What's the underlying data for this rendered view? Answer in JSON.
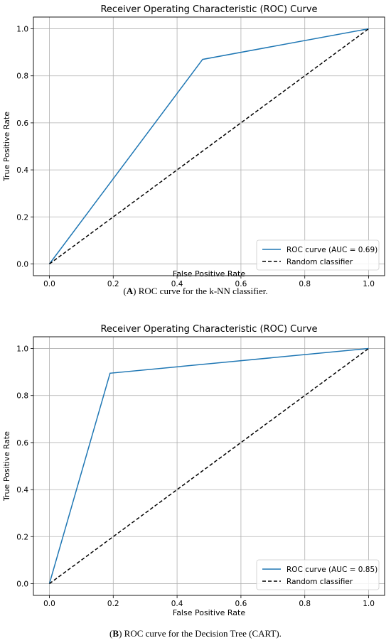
{
  "captions": [
    {
      "letter": "A",
      "text": "ROC curve for the k-NN classifier."
    },
    {
      "letter": "B",
      "text": "ROC curve for the Decision Tree (CART)."
    }
  ],
  "chart_data": [
    {
      "type": "line",
      "title": "Receiver Operating Characteristic (ROC) Curve",
      "xlabel": "False Positive Rate",
      "ylabel": "True Positive Rate",
      "xlim": [
        -0.05,
        1.05
      ],
      "ylim": [
        -0.05,
        1.05
      ],
      "xticks": [
        0.0,
        0.2,
        0.4,
        0.6,
        0.8,
        1.0
      ],
      "yticks": [
        0.0,
        0.2,
        0.4,
        0.6,
        0.8,
        1.0
      ],
      "tick_labels": [
        "0.0",
        "0.2",
        "0.4",
        "0.6",
        "0.8",
        "1.0"
      ],
      "grid": true,
      "legend_position": "lower-right",
      "series": [
        {
          "name": "ROC curve (AUC = 0.69)",
          "x": [
            0.0,
            0.48,
            1.0
          ],
          "y": [
            0.0,
            0.87,
            1.0
          ],
          "color": "#1f77b4",
          "style": "solid"
        },
        {
          "name": "Random classifier",
          "x": [
            0.0,
            1.0
          ],
          "y": [
            0.0,
            1.0
          ],
          "color": "#000000",
          "style": "dashed"
        }
      ]
    },
    {
      "type": "line",
      "title": "Receiver Operating Characteristic (ROC) Curve",
      "xlabel": "False Positive Rate",
      "ylabel": "True Positive Rate",
      "xlim": [
        -0.05,
        1.05
      ],
      "ylim": [
        -0.05,
        1.05
      ],
      "xticks": [
        0.0,
        0.2,
        0.4,
        0.6,
        0.8,
        1.0
      ],
      "yticks": [
        0.0,
        0.2,
        0.4,
        0.6,
        0.8,
        1.0
      ],
      "tick_labels": [
        "0.0",
        "0.2",
        "0.4",
        "0.6",
        "0.8",
        "1.0"
      ],
      "grid": true,
      "legend_position": "lower-right",
      "series": [
        {
          "name": "ROC curve (AUC = 0.85)",
          "x": [
            0.0,
            0.19,
            1.0
          ],
          "y": [
            0.0,
            0.895,
            1.0
          ],
          "color": "#1f77b4",
          "style": "solid"
        },
        {
          "name": "Random classifier",
          "x": [
            0.0,
            1.0
          ],
          "y": [
            0.0,
            1.0
          ],
          "color": "#000000",
          "style": "dashed"
        }
      ]
    }
  ]
}
